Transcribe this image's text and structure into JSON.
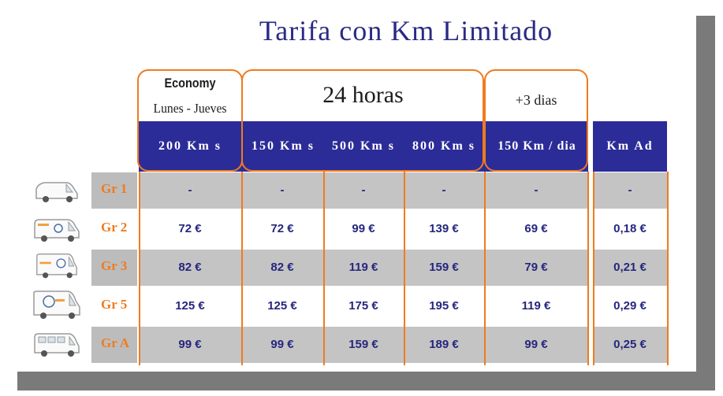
{
  "title": "Tarifa con Km Limitado",
  "groups": {
    "economy": "Economy",
    "economy_sub": "Lunes - Jueves",
    "h24": "24 horas",
    "plus3": "+3 dias"
  },
  "columns": [
    "200 Km s",
    "150 Km s",
    "500 Km s",
    "800 Km s",
    "150 Km / dia",
    "Km Ad"
  ],
  "rows": [
    {
      "label": "Gr 1",
      "values": [
        "-",
        "-",
        "-",
        "-",
        "-",
        "-"
      ]
    },
    {
      "label": "Gr 2",
      "values": [
        "72 €",
        "72 €",
        "99 €",
        "139 €",
        "69 €",
        "0,18 €"
      ]
    },
    {
      "label": "Gr 3",
      "values": [
        "82 €",
        "82 €",
        "119 €",
        "159 €",
        "79 €",
        "0,21 €"
      ]
    },
    {
      "label": "Gr 5",
      "values": [
        "125 €",
        "125 €",
        "175 €",
        "195 €",
        "119 €",
        "0,29 €"
      ]
    },
    {
      "label": "Gr A",
      "values": [
        "99 €",
        "99 €",
        "159 €",
        "189 €",
        "99 €",
        "0,25 €"
      ]
    }
  ],
  "colors": {
    "header_blue": "#2c2c98",
    "accent_orange": "#f07b1e",
    "row_gray": "#c4c4c4",
    "text_blue": "#26267e"
  }
}
